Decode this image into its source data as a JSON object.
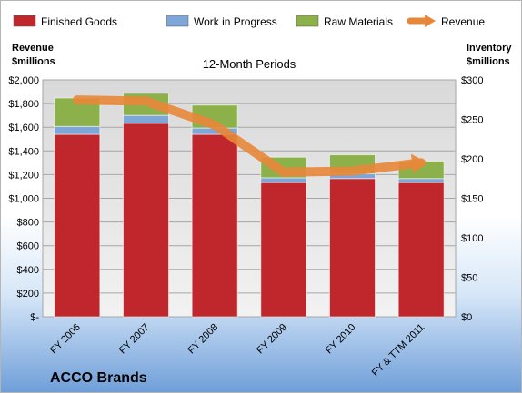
{
  "chart_data": {
    "type": "bar",
    "stacked": true,
    "title": "ACCO Brands",
    "subtitle": "12-Month Periods",
    "categories": [
      "FY 2006",
      "FY 2007",
      "FY 2008",
      "FY 2009",
      "FY 2010",
      "FY & TTM 2011"
    ],
    "series": [
      {
        "name": "Finished Goods",
        "values": [
          231,
          245,
          231,
          170,
          175,
          170
        ],
        "color": "#c0272d",
        "axis": "right"
      },
      {
        "name": "Work in Progress",
        "values": [
          10,
          10,
          8,
          6,
          6,
          5
        ],
        "color": "#7ea6d8",
        "axis": "right"
      },
      {
        "name": "Raw Materials",
        "values": [
          36,
          28,
          29,
          26,
          24,
          22
        ],
        "color": "#8cb14a",
        "axis": "right"
      }
    ],
    "line_series": {
      "name": "Revenue",
      "values": [
        1830,
        1820,
        1620,
        1220,
        1230,
        1300
      ],
      "color": "#e8873a",
      "axis": "left"
    },
    "left_axis": {
      "label_line1": "Revenue",
      "label_line2": "$millions",
      "ylim": [
        0,
        2000
      ],
      "ticks": [
        "$-",
        "$200",
        "$400",
        "$600",
        "$800",
        "$1,000",
        "$1,200",
        "$1,400",
        "$1,600",
        "$1,800",
        "$2,000"
      ]
    },
    "right_axis": {
      "label_line1": "Inventory",
      "label_line2": "$millions",
      "ylim": [
        0,
        300
      ],
      "ticks": [
        "$0",
        "$50",
        "$100",
        "$150",
        "$200",
        "$250",
        "$300"
      ]
    },
    "legend_position": "top",
    "grid": true
  }
}
